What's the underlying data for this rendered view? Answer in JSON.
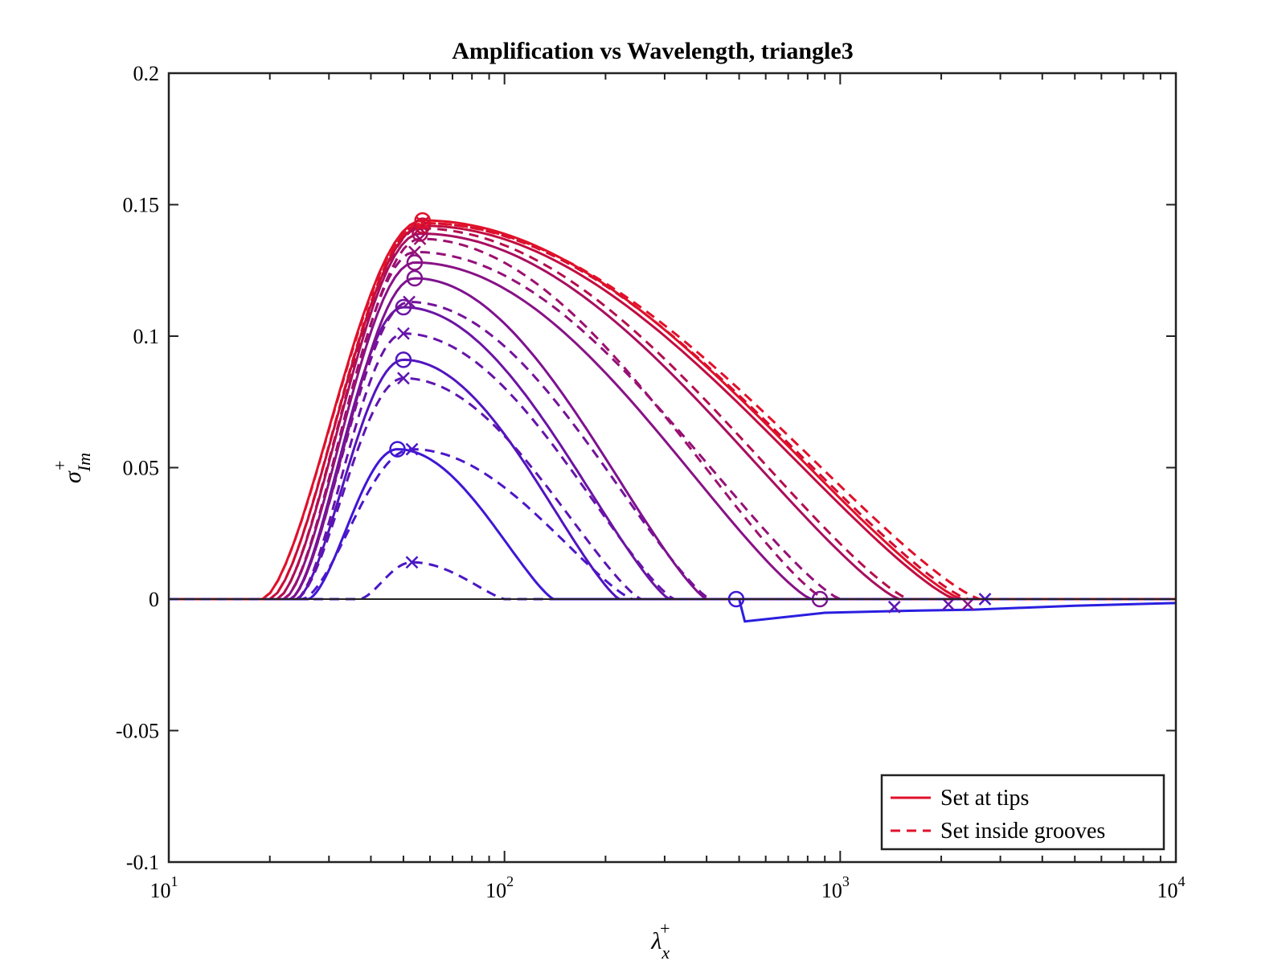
{
  "chart_data": {
    "type": "line",
    "title": "Amplification vs Wavelength, triangle3",
    "xlabel": "λ",
    "xlabel_sub": "x",
    "xlabel_sup": "+",
    "ylabel": "σ",
    "ylabel_sub": "Im",
    "ylabel_sup": "+",
    "xscale": "log",
    "xlim": [
      10,
      10000
    ],
    "ylim": [
      -0.1,
      0.2
    ],
    "grid": false,
    "x_ticks": [
      {
        "base": "10",
        "exp": "1",
        "value": 10
      },
      {
        "base": "10",
        "exp": "2",
        "value": 100
      },
      {
        "base": "10",
        "exp": "3",
        "value": 1000
      },
      {
        "base": "10",
        "exp": "4",
        "value": 10000
      }
    ],
    "y_ticks": [
      {
        "label": "0.2",
        "value": 0.2
      },
      {
        "label": "0.15",
        "value": 0.15
      },
      {
        "label": "0.1",
        "value": 0.1
      },
      {
        "label": "0.05",
        "value": 0.05
      },
      {
        "label": "0",
        "value": 0
      },
      {
        "label": "-0.05",
        "value": -0.05
      },
      {
        "label": "-0.1",
        "value": -0.1
      }
    ],
    "legend": {
      "position": "bottom-right",
      "entries": [
        {
          "label": "Set at tips",
          "style": "solid",
          "color": "#e0102a"
        },
        {
          "label": "Set inside grooves",
          "style": "dashed",
          "color": "#e0102a"
        }
      ]
    },
    "series": [
      {
        "color": "#3f16d6",
        "peak": 0.057,
        "x_peak": 48,
        "x_start": 26,
        "x_end": 140,
        "style": "solid",
        "peak_marker": "o"
      },
      {
        "color": "#4c16c8",
        "peak": 0.057,
        "x_peak": 53,
        "x_start": 25,
        "x_end": 240,
        "style": "dashed",
        "peak_marker": "x"
      },
      {
        "color": "#5115bf",
        "peak": 0.091,
        "x_peak": 50,
        "x_start": 24,
        "x_end": 220,
        "style": "solid",
        "peak_marker": "o"
      },
      {
        "color": "#5d15b2",
        "peak": 0.084,
        "x_peak": 50,
        "x_start": 24,
        "x_end": 255,
        "style": "dashed",
        "peak_marker": "x"
      },
      {
        "color": "#6614aa",
        "peak": 0.101,
        "x_peak": 50,
        "x_start": 24,
        "x_end": 320,
        "style": "dashed",
        "peak_marker": "x"
      },
      {
        "color": "#6b14a4",
        "peak": 0.111,
        "x_peak": 50,
        "x_start": 23,
        "x_end": 310,
        "style": "solid",
        "peak_marker": "o"
      },
      {
        "color": "#74139a",
        "peak": 0.113,
        "x_peak": 52,
        "x_start": 23,
        "x_end": 410,
        "style": "dashed",
        "peak_marker": "x"
      },
      {
        "color": "#7e128f",
        "peak": 0.122,
        "x_peak": 54,
        "x_start": 23,
        "x_end": 400,
        "style": "solid",
        "peak_marker": "o"
      },
      {
        "color": "#881286",
        "peak": 0.128,
        "x_peak": 54,
        "x_start": 22,
        "x_end": 820,
        "style": "solid",
        "peak_marker": "o"
      },
      {
        "color": "#931178",
        "peak": 0.132,
        "x_peak": 54,
        "x_start": 22,
        "x_end": 1000,
        "style": "dashed",
        "peak_marker": "x"
      },
      {
        "color": "#9d106e",
        "peak": 0.137,
        "x_peak": 56,
        "x_start": 22,
        "x_end": 900,
        "style": "dashed",
        "peak_marker": "x"
      },
      {
        "color": "#a80f5f",
        "peak": 0.139,
        "x_peak": 56,
        "x_start": 21,
        "x_end": 1500,
        "style": "solid",
        "peak_marker": "o"
      },
      {
        "color": "#b40e50",
        "peak": 0.141,
        "x_peak": 56,
        "x_start": 21,
        "x_end": 1600,
        "style": "dashed",
        "peak_marker": "x"
      },
      {
        "color": "#c20d40",
        "peak": 0.142,
        "x_peak": 57,
        "x_start": 20,
        "x_end": 2200,
        "style": "solid",
        "peak_marker": "o"
      },
      {
        "color": "#d20c30",
        "peak": 0.143,
        "x_peak": 57,
        "x_start": 20,
        "x_end": 2400,
        "style": "dashed",
        "peak_marker": "x"
      },
      {
        "color": "#e0102a",
        "peak": 0.144,
        "x_peak": 57,
        "x_start": 19,
        "x_end": 2300,
        "style": "solid",
        "peak_marker": "o"
      },
      {
        "color": "#e0102a",
        "peak": 0.143,
        "x_peak": 57,
        "x_start": 19,
        "x_end": 2600,
        "style": "dashed",
        "peak_marker": "x"
      },
      {
        "color": "#4a17c4",
        "peak": 0.014,
        "x_peak": 53,
        "x_start": 37,
        "x_end": 100,
        "style": "dashed",
        "peak_marker": "x"
      }
    ],
    "negative_branch": {
      "color": "#2a1ee0",
      "points": [
        [
          500,
          0
        ],
        [
          520,
          -0.0085
        ],
        [
          900,
          -0.0052
        ],
        [
          1500,
          -0.0045
        ],
        [
          2500,
          -0.004
        ],
        [
          5000,
          -0.0025
        ],
        [
          10000,
          -0.0015
        ]
      ]
    },
    "zero_markers": [
      {
        "x": 490,
        "y": 0,
        "marker": "o",
        "color": "#3f16d6"
      },
      {
        "x": 870,
        "y": 0,
        "marker": "o",
        "color": "#7e128f"
      },
      {
        "x": 2700,
        "y": 0,
        "marker": "x",
        "color": "#4c16c8"
      },
      {
        "x": 2100,
        "y": -0.002,
        "marker": "x",
        "color": "#6614aa"
      },
      {
        "x": 2400,
        "y": -0.002,
        "marker": "x",
        "color": "#881286"
      },
      {
        "x": 1450,
        "y": -0.003,
        "marker": "x",
        "color": "#5d15b2"
      }
    ]
  }
}
